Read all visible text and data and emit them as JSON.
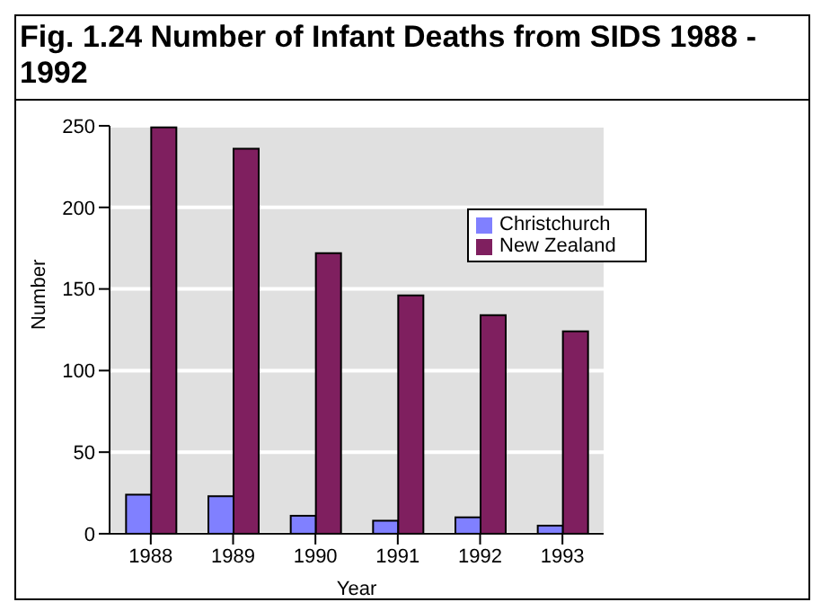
{
  "chart_data": {
    "type": "bar",
    "title": "Fig. 1.24 Number of Infant Deaths from SIDS 1988 - 1992",
    "xlabel": "Year",
    "ylabel": "Number",
    "categories": [
      "1988",
      "1989",
      "1990",
      "1991",
      "1992",
      "1993"
    ],
    "series": [
      {
        "name": "Christchurch",
        "color": "#8080ff",
        "values": [
          24,
          23,
          11,
          8,
          10,
          5
        ]
      },
      {
        "name": "New Zealand",
        "color": "#7f1f5f",
        "values": [
          249,
          236,
          172,
          146,
          134,
          124
        ]
      }
    ],
    "ylim": [
      0,
      250
    ],
    "yticks": [
      0,
      50,
      100,
      150,
      200,
      250
    ],
    "grid": "y",
    "legend": "top right"
  }
}
